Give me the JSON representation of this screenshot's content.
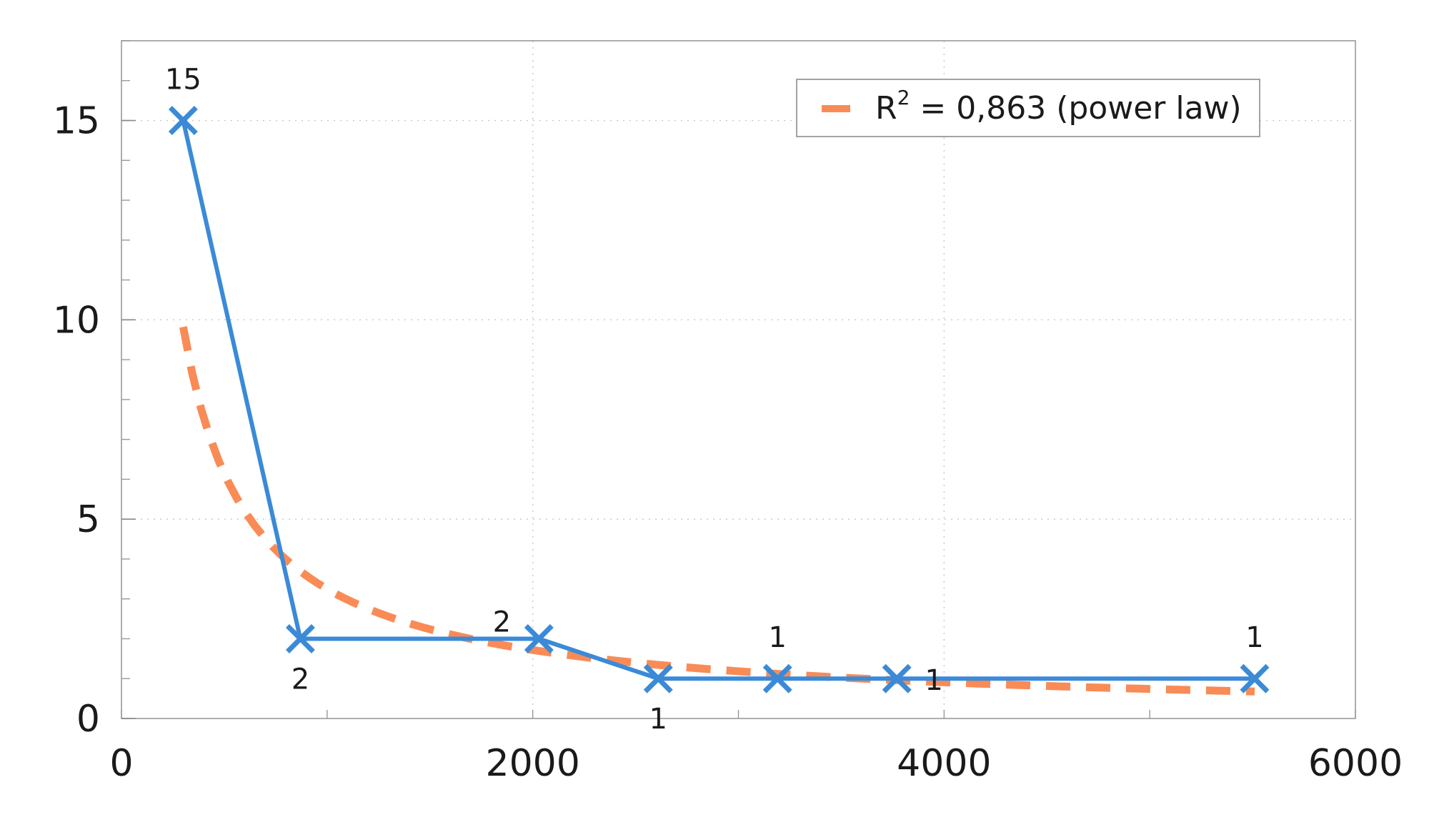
{
  "chart_data": {
    "type": "line",
    "title": "",
    "xlabel": "",
    "ylabel": "",
    "xlim": [
      0,
      6000
    ],
    "ylim": [
      0,
      17
    ],
    "x_ticks": [
      0,
      2000,
      4000,
      6000
    ],
    "x_ticks_labels": [
      "0",
      "2000",
      "4000",
      "6000"
    ],
    "y_ticks": [
      0,
      5,
      10,
      15
    ],
    "y_ticks_labels": [
      "0",
      "5",
      "10",
      "15"
    ],
    "x_minor_step": 1000,
    "y_minor_step": 1,
    "grid": true,
    "legend_position": "top-right",
    "series": [
      {
        "kind": "data",
        "color": "#3a8ad8",
        "marker": "x",
        "points": [
          {
            "x": 300,
            "y": 15,
            "label": "15",
            "label_pos": "above"
          },
          {
            "x": 870,
            "y": 2,
            "label": "2",
            "label_pos": "below"
          },
          {
            "x": 2030,
            "y": 2,
            "label": "2",
            "label_pos": "above-left"
          },
          {
            "x": 2610,
            "y": 1,
            "label": "1",
            "label_pos": "below"
          },
          {
            "x": 3190,
            "y": 1,
            "label": "1",
            "label_pos": "above"
          },
          {
            "x": 3770,
            "y": 1,
            "label": "1",
            "label_pos": "right"
          },
          {
            "x": 5510,
            "y": 1,
            "label": "1",
            "label_pos": "above"
          }
        ]
      },
      {
        "kind": "fit",
        "name": "R2 = 0,863 (power law)",
        "legend_label_prefix": "R",
        "legend_label_sup": "2",
        "legend_label_suffix": " = 0,863 (power law)",
        "color": "#f98c56",
        "dashed": true,
        "x_range": [
          300,
          5510
        ]
      }
    ]
  }
}
